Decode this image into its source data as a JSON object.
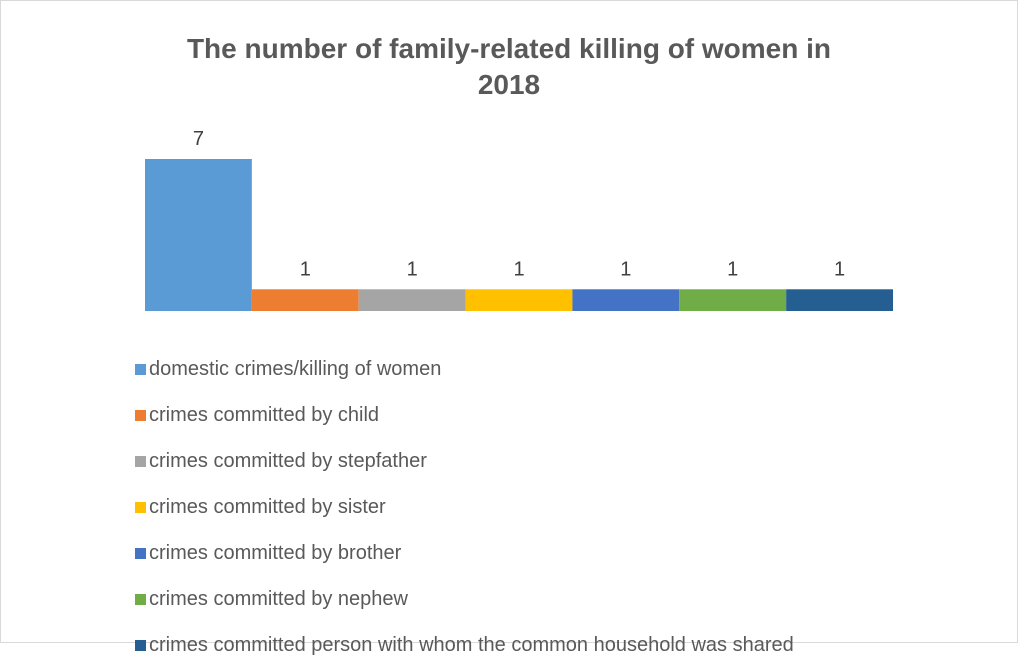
{
  "chart_data": {
    "type": "bar",
    "title_lines": [
      "The number of family-related killing of women in",
      "2018"
    ],
    "categories": [
      "domestic crimes/killing of women",
      "crimes committed by child",
      "crimes committed by stepfather",
      "crimes committed by sister",
      "crimes committed by brother",
      "crimes committed by nephew",
      "crimes committed person with whom the common household was shared"
    ],
    "values": [
      7,
      1,
      1,
      1,
      1,
      1,
      1
    ],
    "colors": [
      "#5b9bd5",
      "#ed7d31",
      "#a5a5a5",
      "#ffc000",
      "#4472c4",
      "#70ad47",
      "#255e91"
    ],
    "ylim": [
      0,
      7
    ],
    "grid": false,
    "legend_position": "bottom"
  }
}
